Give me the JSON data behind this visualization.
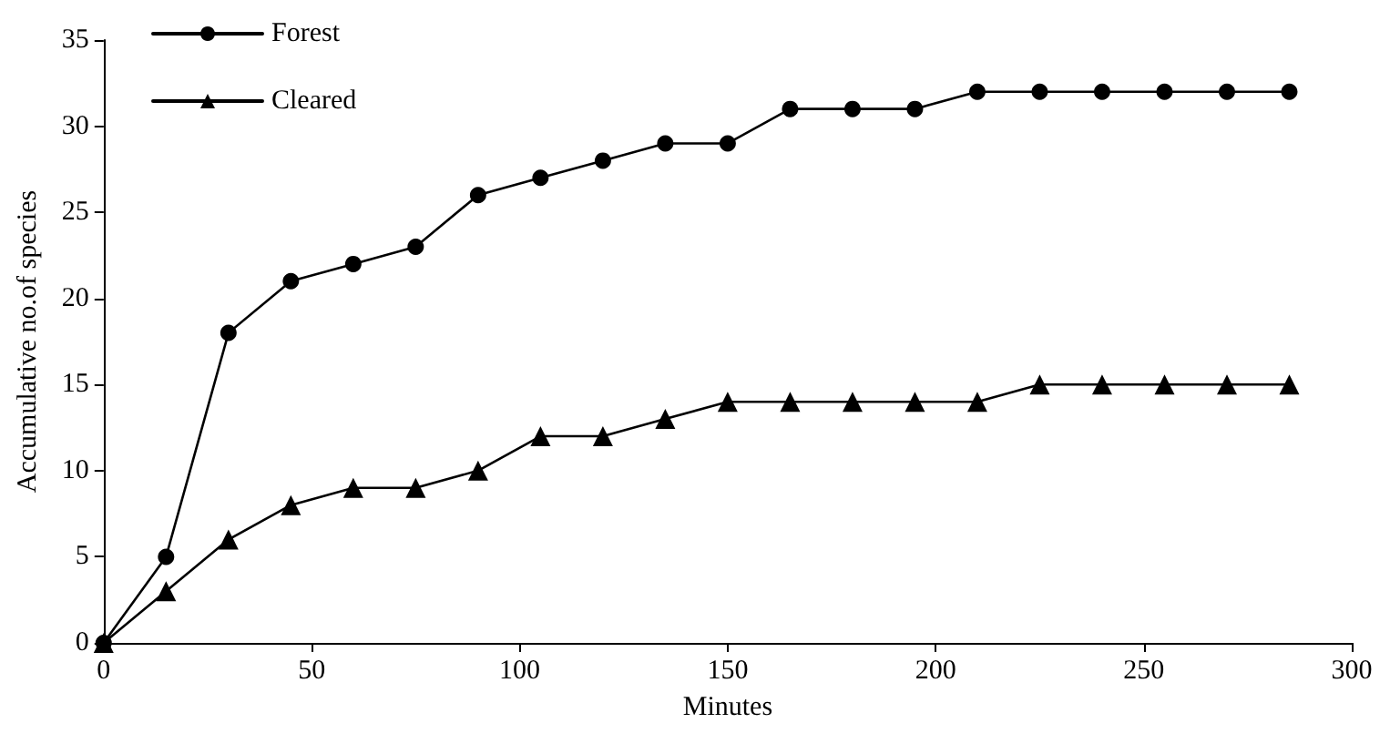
{
  "chart_data": {
    "type": "line",
    "xlabel": "Minutes",
    "ylabel": "Accumulative no.of species",
    "x": [
      0,
      15,
      30,
      45,
      60,
      75,
      90,
      105,
      120,
      135,
      150,
      165,
      180,
      195,
      210,
      225,
      240,
      255,
      270,
      285
    ],
    "series": [
      {
        "name": "Forest",
        "color": "#000000",
        "marker": "circle",
        "values": [
          0,
          5,
          18,
          21,
          22,
          23,
          26,
          27,
          28,
          29,
          29,
          31,
          31,
          31,
          32,
          32,
          32,
          32,
          32,
          32
        ]
      },
      {
        "name": "Cleared",
        "color": "#000000",
        "marker": "triangle",
        "values": [
          0,
          3,
          6,
          8,
          9,
          9,
          10,
          12,
          12,
          13,
          14,
          14,
          14,
          14,
          14,
          15,
          15,
          15,
          15,
          15
        ]
      }
    ],
    "xlim": [
      0,
      300
    ],
    "xticks": [
      0,
      50,
      100,
      150,
      200,
      250,
      300
    ],
    "ylim": [
      0,
      35
    ],
    "yticks": [
      0,
      5,
      10,
      15,
      20,
      25,
      30,
      35
    ],
    "grid": false,
    "legend": "top left",
    "line_style": "solid"
  }
}
